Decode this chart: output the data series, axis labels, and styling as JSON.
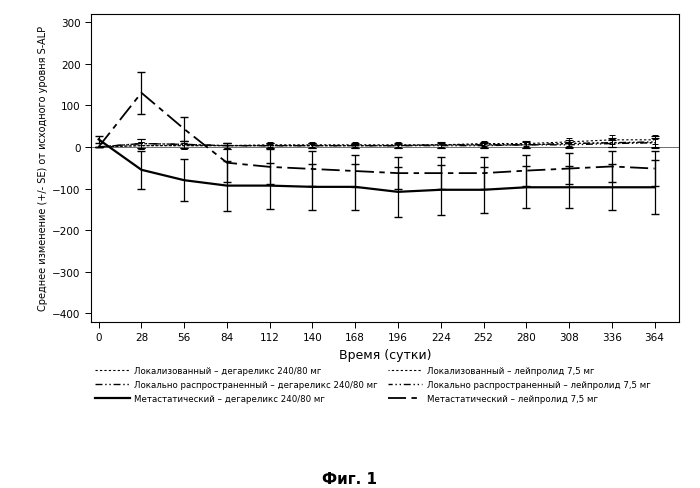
{
  "xlabel": "Время (сутки)",
  "ylabel": "Среднее изменение (+/- SE) от исходного уровня S-ALP",
  "caption": "Фиг. 1",
  "xlim": [
    -5,
    380
  ],
  "ylim": [
    -420,
    320
  ],
  "yticks": [
    -400,
    -300,
    -200,
    -100,
    0,
    100,
    200,
    300
  ],
  "xticks": [
    0,
    28,
    56,
    84,
    112,
    140,
    168,
    196,
    224,
    252,
    280,
    308,
    336,
    364
  ],
  "time": [
    0,
    28,
    56,
    84,
    112,
    140,
    168,
    196,
    224,
    252,
    280,
    308,
    336,
    364
  ],
  "loc_deg_y": [
    0,
    3,
    3,
    3,
    3,
    3,
    3,
    3,
    5,
    5,
    5,
    8,
    10,
    10
  ],
  "loc_deg_err": [
    0,
    8,
    7,
    6,
    5,
    5,
    5,
    5,
    6,
    6,
    6,
    8,
    10,
    10
  ],
  "locsp_deg_y": [
    0,
    8,
    6,
    3,
    3,
    3,
    3,
    3,
    3,
    3,
    5,
    5,
    8,
    10
  ],
  "locsp_deg_err": [
    0,
    10,
    8,
    7,
    6,
    6,
    5,
    5,
    6,
    6,
    7,
    7,
    9,
    12
  ],
  "meta_deg_y": [
    18,
    -55,
    -80,
    -93,
    -93,
    -96,
    -96,
    -108,
    -103,
    -103,
    -97,
    -97,
    -97,
    -97
  ],
  "meta_deg_err": [
    8,
    45,
    50,
    60,
    55,
    55,
    55,
    60,
    60,
    55,
    50,
    50,
    55,
    65
  ],
  "loc_leu_y": [
    0,
    3,
    3,
    3,
    5,
    5,
    5,
    5,
    5,
    8,
    8,
    12,
    17,
    17
  ],
  "loc_leu_err": [
    0,
    8,
    7,
    6,
    6,
    6,
    6,
    6,
    7,
    7,
    7,
    9,
    11,
    11
  ],
  "locsp_leu_y": [
    0,
    8,
    6,
    3,
    3,
    3,
    3,
    3,
    5,
    5,
    5,
    8,
    10,
    12
  ],
  "locsp_leu_err": [
    0,
    10,
    8,
    7,
    6,
    6,
    6,
    6,
    7,
    7,
    8,
    9,
    11,
    13
  ],
  "meta_leu_y": [
    0,
    130,
    43,
    -38,
    -48,
    -53,
    -58,
    -63,
    -63,
    -63,
    -57,
    -52,
    -47,
    -52
  ],
  "meta_leu_err": [
    0,
    50,
    28,
    47,
    42,
    42,
    38,
    38,
    38,
    38,
    38,
    38,
    38,
    43
  ],
  "legend_entries": [
    "Локализованный – дегареликс 240/80 мг",
    "Локально распространенный – дегареликс 240/80 мг",
    "Метастатический – дегареликс 240/80 мг",
    "Локализованный – лейпролид 7,5 мг",
    "Локально распространенный – лейпролид 7,5 мг",
    "Метастатический – лейпролид 7,5 мг"
  ],
  "background_color": "#ffffff",
  "line_color": "#000000"
}
